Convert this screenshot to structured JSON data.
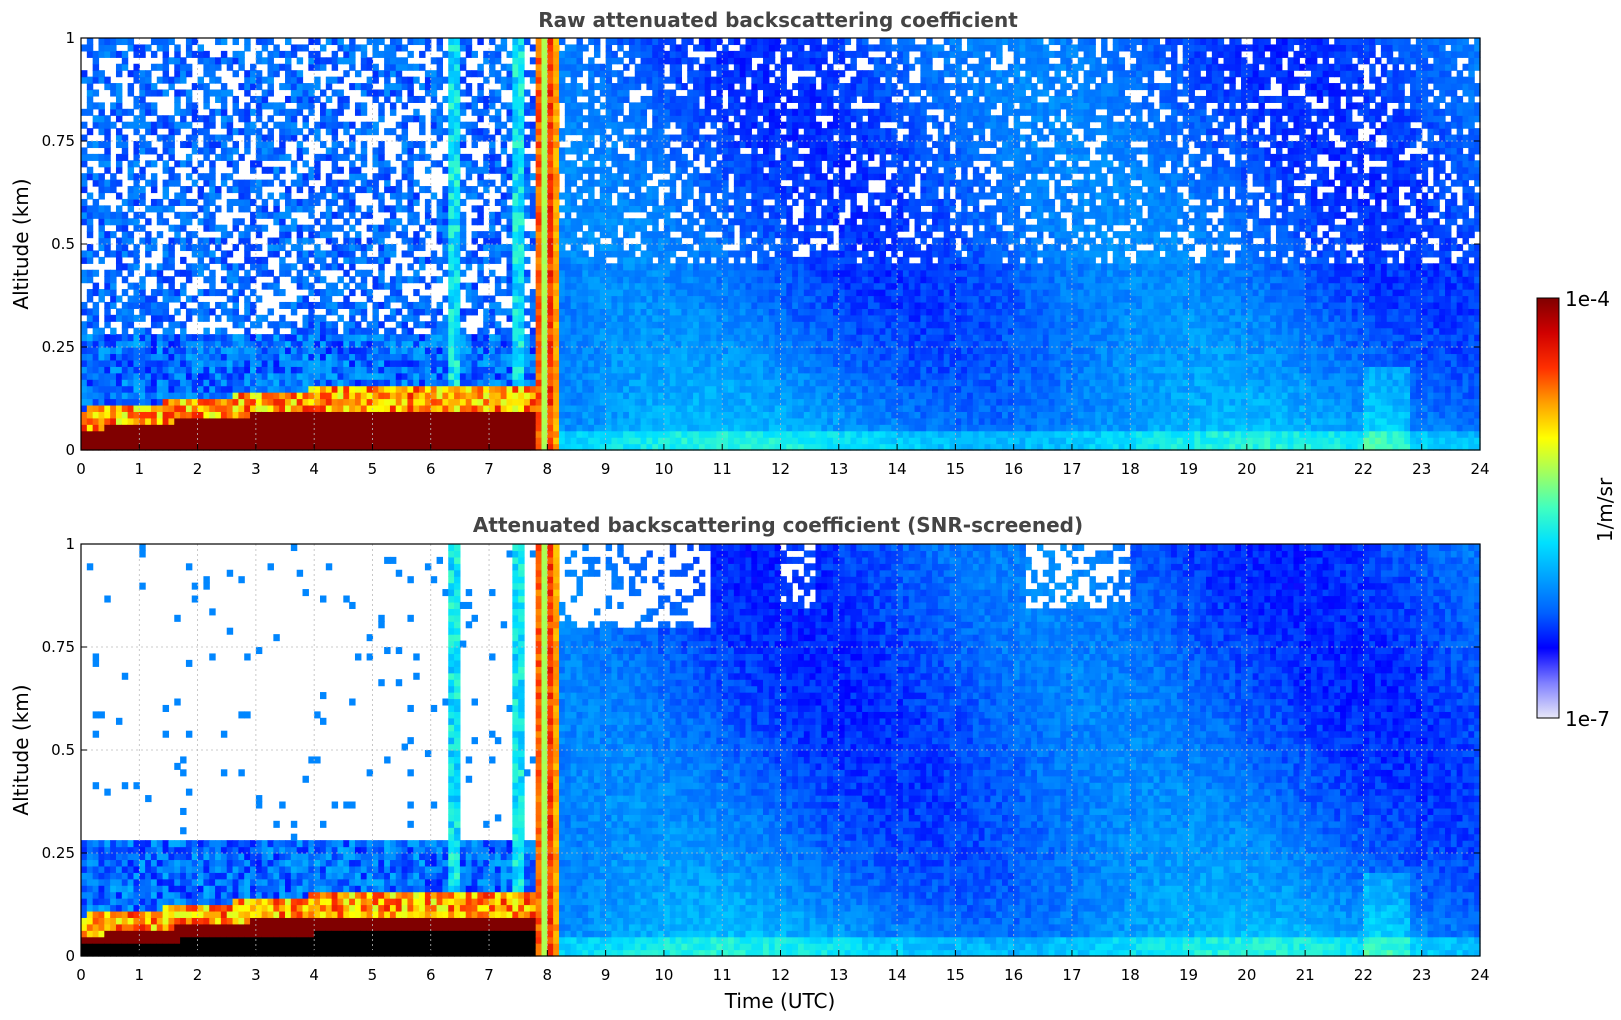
{
  "chart_data": [
    {
      "type": "heatmap",
      "title": "Raw attenuated backscattering coefficient",
      "xlabel": "",
      "ylabel": "Altitude (km)",
      "xlim": [
        0,
        24
      ],
      "ylim": [
        0,
        1
      ],
      "xticks": [
        "0",
        "1",
        "2",
        "3",
        "4",
        "5",
        "6",
        "7",
        "8",
        "9",
        "10",
        "11",
        "12",
        "13",
        "14",
        "15",
        "16",
        "17",
        "18",
        "19",
        "20",
        "21",
        "22",
        "23",
        "24"
      ],
      "yticks": [
        "0",
        "0.25",
        "0.5",
        "0.75",
        "1"
      ],
      "grid": true,
      "screened": false
    },
    {
      "type": "heatmap",
      "title": "Attenuated backscattering coefficient (SNR-screened)",
      "xlabel": "Time (UTC)",
      "ylabel": "Altitude (km)",
      "xlim": [
        0,
        24
      ],
      "ylim": [
        0,
        1
      ],
      "xticks": [
        "0",
        "1",
        "2",
        "3",
        "4",
        "5",
        "6",
        "7",
        "8",
        "9",
        "10",
        "11",
        "12",
        "13",
        "14",
        "15",
        "16",
        "17",
        "18",
        "19",
        "20",
        "21",
        "22",
        "23",
        "24"
      ],
      "yticks": [
        "0",
        "0.25",
        "0.5",
        "0.75",
        "1"
      ],
      "grid": true,
      "screened": true
    }
  ],
  "colorbar": {
    "max_label": "1e-4",
    "min_label": "1e-7",
    "unit": "1/m/sr",
    "colors": [
      "#e8e8f8",
      "#8080ff",
      "#0000ff",
      "#0060ff",
      "#00a0ff",
      "#00e0ff",
      "#40ffc0",
      "#a0ff60",
      "#ffff00",
      "#ffa000",
      "#ff3000",
      "#d00000",
      "#800000"
    ]
  }
}
